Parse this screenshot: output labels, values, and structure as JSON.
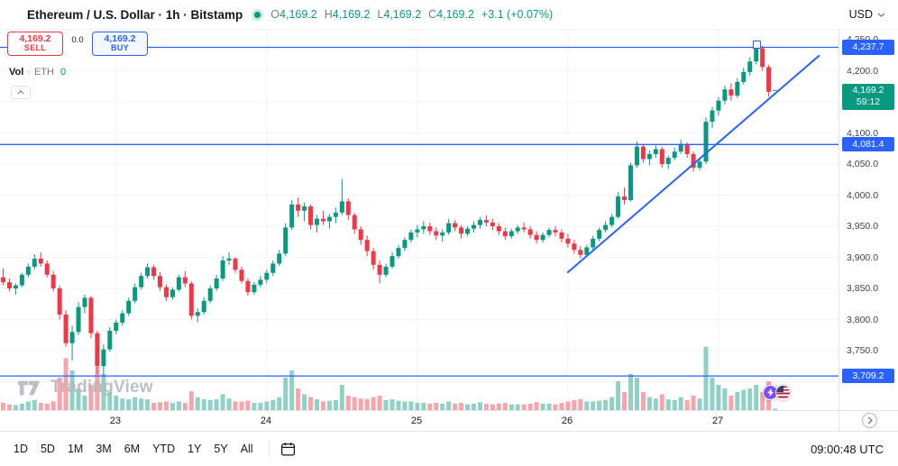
{
  "header": {
    "symbol_title": "Ethereum / U.S. Dollar · 1h · Bitstamp",
    "market_status": "open",
    "ohlc": {
      "o_label": "O",
      "o_value": "4,169.2",
      "h_label": "H",
      "h_value": "4,169.2",
      "l_label": "L",
      "l_value": "4,169.2",
      "c_label": "C",
      "c_value": "4,169.2",
      "change": "+3.1 (+0.07%)"
    },
    "currency": "USD"
  },
  "trade_panel": {
    "sell_price": "4,169.2",
    "sell_label": "SELL",
    "spread": "0.0",
    "buy_price": "4,169.2",
    "buy_label": "BUY"
  },
  "volume_legend": {
    "title": "Vol",
    "separator": "·",
    "unit": "ETH",
    "value": "0"
  },
  "watermark_text": "TradingView",
  "price_scale": {
    "labels": [
      {
        "text": "4,250.0",
        "price": 4250
      },
      {
        "text": "4,200.0",
        "price": 4200
      },
      {
        "text": "4,100.0",
        "price": 4100
      },
      {
        "text": "4,050.0",
        "price": 4050
      },
      {
        "text": "4,000.0",
        "price": 4000
      },
      {
        "text": "3,950.0",
        "price": 3950
      },
      {
        "text": "3,900.0",
        "price": 3900
      },
      {
        "text": "3,850.0",
        "price": 3850
      },
      {
        "text": "3,800.0",
        "price": 3800
      },
      {
        "text": "3,750.0",
        "price": 3750
      }
    ],
    "level_badges": [
      {
        "text": "4,237.7",
        "price": 4237.7
      },
      {
        "text": "4,081.4",
        "price": 4081.4
      },
      {
        "text": "3,709.2",
        "price": 3709.2
      }
    ],
    "current_badge": {
      "text": "4,169.2",
      "countdown": "59:12",
      "price": 4169.2
    }
  },
  "toolbar": {
    "ranges": [
      "1D",
      "5D",
      "1M",
      "3M",
      "6M",
      "YTD",
      "1Y",
      "5Y",
      "All"
    ],
    "clock": "09:00:48 UTC"
  },
  "chart_data": {
    "type": "candlestick",
    "title": "Ethereum / U.S. Dollar · 1h · Bitstamp",
    "symbol": "ETH/USD",
    "interval": "1h",
    "exchange": "Bitstamp",
    "ylim": [
      3690,
      4260
    ],
    "grid_step": 50,
    "up_color": "#089981",
    "down_color": "#f23645",
    "line_color": "#2962ff",
    "day_ticks": [
      {
        "label": "23",
        "index": 18
      },
      {
        "label": "24",
        "index": 42
      },
      {
        "label": "25",
        "index": 66
      },
      {
        "label": "26",
        "index": 90
      },
      {
        "label": "27",
        "index": 114
      }
    ],
    "horizontal_levels": [
      4237.7,
      4081.4,
      3709.2
    ],
    "trendline": {
      "from_index": 90,
      "from_price": 3876,
      "to_index": 130,
      "to_price": 4224
    },
    "current_price": 4169.2,
    "countdown": "59:12",
    "candles_format": [
      "open",
      "high",
      "low",
      "close",
      "volume_rel"
    ],
    "candles": [
      [
        3868,
        3882,
        3855,
        3860,
        0.1
      ],
      [
        3860,
        3866,
        3845,
        3850,
        0.08
      ],
      [
        3850,
        3858,
        3840,
        3855,
        0.07
      ],
      [
        3855,
        3875,
        3852,
        3872,
        0.09
      ],
      [
        3872,
        3890,
        3868,
        3885,
        0.12
      ],
      [
        3885,
        3905,
        3880,
        3898,
        0.14
      ],
      [
        3898,
        3908,
        3885,
        3890,
        0.1
      ],
      [
        3890,
        3895,
        3868,
        3872,
        0.09
      ],
      [
        3872,
        3878,
        3845,
        3850,
        0.12
      ],
      [
        3850,
        3855,
        3800,
        3808,
        0.45
      ],
      [
        3808,
        3815,
        3756,
        3762,
        0.72
      ],
      [
        3762,
        3790,
        3734,
        3780,
        0.55
      ],
      [
        3780,
        3828,
        3775,
        3820,
        0.3
      ],
      [
        3820,
        3840,
        3810,
        3835,
        0.2
      ],
      [
        3835,
        3838,
        3770,
        3778,
        0.35
      ],
      [
        3778,
        3782,
        3712,
        3725,
        0.6
      ],
      [
        3725,
        3760,
        3708,
        3752,
        0.5
      ],
      [
        3752,
        3788,
        3748,
        3782,
        0.25
      ],
      [
        3782,
        3800,
        3776,
        3795,
        0.2
      ],
      [
        3795,
        3815,
        3790,
        3810,
        0.16
      ],
      [
        3810,
        3835,
        3806,
        3830,
        0.15
      ],
      [
        3830,
        3858,
        3826,
        3852,
        0.18
      ],
      [
        3852,
        3875,
        3848,
        3870,
        0.16
      ],
      [
        3870,
        3890,
        3866,
        3884,
        0.15
      ],
      [
        3884,
        3888,
        3864,
        3870,
        0.1
      ],
      [
        3870,
        3876,
        3846,
        3852,
        0.11
      ],
      [
        3852,
        3856,
        3830,
        3836,
        0.12
      ],
      [
        3836,
        3852,
        3832,
        3848,
        0.1
      ],
      [
        3848,
        3872,
        3845,
        3868,
        0.12
      ],
      [
        3868,
        3878,
        3852,
        3858,
        0.1
      ],
      [
        3858,
        3862,
        3800,
        3806,
        0.26
      ],
      [
        3806,
        3818,
        3796,
        3812,
        0.18
      ],
      [
        3812,
        3836,
        3808,
        3830,
        0.15
      ],
      [
        3830,
        3855,
        3826,
        3850,
        0.14
      ],
      [
        3850,
        3872,
        3846,
        3866,
        0.15
      ],
      [
        3866,
        3902,
        3862,
        3895,
        0.22
      ],
      [
        3895,
        3908,
        3888,
        3898,
        0.16
      ],
      [
        3898,
        3900,
        3875,
        3880,
        0.12
      ],
      [
        3880,
        3885,
        3858,
        3862,
        0.12
      ],
      [
        3862,
        3866,
        3838,
        3844,
        0.13
      ],
      [
        3844,
        3860,
        3840,
        3856,
        0.1
      ],
      [
        3856,
        3870,
        3852,
        3864,
        0.1
      ],
      [
        3864,
        3880,
        3858,
        3875,
        0.12
      ],
      [
        3875,
        3895,
        3870,
        3890,
        0.14
      ],
      [
        3890,
        3912,
        3886,
        3906,
        0.18
      ],
      [
        3906,
        3955,
        3902,
        3948,
        0.45
      ],
      [
        3948,
        3992,
        3944,
        3985,
        0.55
      ],
      [
        3985,
        3996,
        3965,
        3975,
        0.3
      ],
      [
        3975,
        3988,
        3958,
        3982,
        0.22
      ],
      [
        3982,
        3985,
        3945,
        3952,
        0.18
      ],
      [
        3952,
        3968,
        3940,
        3962,
        0.15
      ],
      [
        3962,
        3975,
        3952,
        3958,
        0.12
      ],
      [
        3958,
        3970,
        3946,
        3965,
        0.13
      ],
      [
        3965,
        3980,
        3955,
        3972,
        0.14
      ],
      [
        3972,
        4026,
        3968,
        3990,
        0.35
      ],
      [
        3990,
        3995,
        3960,
        3968,
        0.2
      ],
      [
        3968,
        3972,
        3938,
        3945,
        0.18
      ],
      [
        3945,
        3950,
        3920,
        3928,
        0.16
      ],
      [
        3928,
        3935,
        3902,
        3910,
        0.15
      ],
      [
        3910,
        3915,
        3880,
        3888,
        0.18
      ],
      [
        3888,
        3895,
        3858,
        3872,
        0.2
      ],
      [
        3872,
        3890,
        3868,
        3885,
        0.14
      ],
      [
        3885,
        3908,
        3882,
        3902,
        0.15
      ],
      [
        3902,
        3920,
        3898,
        3915,
        0.13
      ],
      [
        3915,
        3932,
        3910,
        3928,
        0.12
      ],
      [
        3928,
        3945,
        3924,
        3940,
        0.12
      ],
      [
        3940,
        3952,
        3932,
        3945,
        0.1
      ],
      [
        3945,
        3958,
        3938,
        3950,
        0.1
      ],
      [
        3950,
        3956,
        3936,
        3942,
        0.09
      ],
      [
        3942,
        3948,
        3928,
        3935,
        0.1
      ],
      [
        3935,
        3945,
        3925,
        3940,
        0.09
      ],
      [
        3940,
        3962,
        3936,
        3955,
        0.12
      ],
      [
        3955,
        3960,
        3942,
        3948,
        0.09
      ],
      [
        3948,
        3952,
        3930,
        3938,
        0.1
      ],
      [
        3938,
        3950,
        3934,
        3946,
        0.08
      ],
      [
        3946,
        3958,
        3940,
        3952,
        0.09
      ],
      [
        3952,
        3965,
        3946,
        3960,
        0.11
      ],
      [
        3960,
        3968,
        3950,
        3956,
        0.09
      ],
      [
        3956,
        3962,
        3944,
        3950,
        0.08
      ],
      [
        3950,
        3955,
        3936,
        3942,
        0.09
      ],
      [
        3942,
        3948,
        3928,
        3934,
        0.1
      ],
      [
        3934,
        3946,
        3930,
        3942,
        0.08
      ],
      [
        3942,
        3952,
        3938,
        3948,
        0.08
      ],
      [
        3948,
        3956,
        3940,
        3945,
        0.08
      ],
      [
        3945,
        3950,
        3930,
        3936,
        0.09
      ],
      [
        3936,
        3942,
        3922,
        3928,
        0.11
      ],
      [
        3928,
        3940,
        3924,
        3936,
        0.09
      ],
      [
        3936,
        3948,
        3932,
        3944,
        0.09
      ],
      [
        3944,
        3950,
        3934,
        3940,
        0.08
      ],
      [
        3940,
        3945,
        3924,
        3930,
        0.1
      ],
      [
        3930,
        3938,
        3916,
        3922,
        0.12
      ],
      [
        3922,
        3928,
        3906,
        3912,
        0.14
      ],
      [
        3912,
        3918,
        3898,
        3904,
        0.15
      ],
      [
        3904,
        3920,
        3900,
        3916,
        0.12
      ],
      [
        3916,
        3935,
        3912,
        3930,
        0.12
      ],
      [
        3930,
        3948,
        3926,
        3944,
        0.13
      ],
      [
        3944,
        3958,
        3940,
        3952,
        0.14
      ],
      [
        3952,
        3970,
        3948,
        3965,
        0.18
      ],
      [
        3965,
        4005,
        3962,
        3998,
        0.4
      ],
      [
        3998,
        4012,
        3985,
        3992,
        0.25
      ],
      [
        3992,
        4052,
        3990,
        4048,
        0.5
      ],
      [
        4048,
        4086,
        4044,
        4078,
        0.45
      ],
      [
        4078,
        4082,
        4052,
        4058,
        0.25
      ],
      [
        4058,
        4072,
        4048,
        4066,
        0.18
      ],
      [
        4066,
        4080,
        4060,
        4074,
        0.16
      ],
      [
        4074,
        4078,
        4044,
        4050,
        0.22
      ],
      [
        4050,
        4064,
        4042,
        4060,
        0.15
      ],
      [
        4060,
        4076,
        4056,
        4070,
        0.14
      ],
      [
        4070,
        4089,
        4066,
        4082,
        0.18
      ],
      [
        4082,
        4085,
        4060,
        4066,
        0.14
      ],
      [
        4066,
        4070,
        4038,
        4044,
        0.2
      ],
      [
        4044,
        4058,
        4040,
        4054,
        0.16
      ],
      [
        4054,
        4125,
        4050,
        4118,
        0.88
      ],
      [
        4118,
        4142,
        4108,
        4136,
        0.45
      ],
      [
        4136,
        4158,
        4128,
        4152,
        0.35
      ],
      [
        4152,
        4176,
        4146,
        4170,
        0.3
      ],
      [
        4170,
        4180,
        4152,
        4160,
        0.2
      ],
      [
        4160,
        4188,
        4156,
        4182,
        0.25
      ],
      [
        4182,
        4205,
        4178,
        4198,
        0.28
      ],
      [
        4198,
        4222,
        4192,
        4215,
        0.3
      ],
      [
        4215,
        4243,
        4210,
        4236,
        0.35
      ],
      [
        4236,
        4241,
        4200,
        4206,
        0.25
      ],
      [
        4206,
        4210,
        4158,
        4166.1,
        0.4
      ],
      [
        4169.2,
        4169.2,
        4169.2,
        4169.2,
        0.02
      ]
    ]
  }
}
